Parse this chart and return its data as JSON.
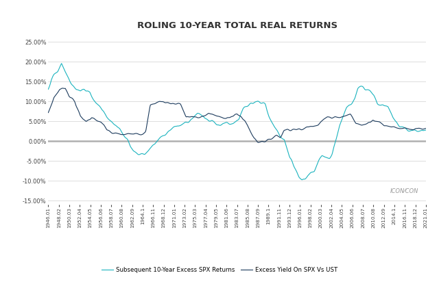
{
  "title": "ROLING 10-YEAR TOTAL REAL RETURNS",
  "ylim": [
    -0.16,
    0.27
  ],
  "yticks": [
    -0.15,
    -0.1,
    -0.05,
    0.0,
    0.05,
    0.1,
    0.15,
    0.2,
    0.25
  ],
  "line1_label": "Excess Yield On SPX Vs UST",
  "line2_label": "Subsequent 10-Year Excess SPX Returns",
  "line1_color": "#1b3a5c",
  "line2_color": "#1ab3be",
  "bg_color": "#f5f5f5",
  "plot_bg_color": "#ffffff",
  "grid_color": "#d0d0d0",
  "border_color": "#cccccc",
  "zero_line_color": "#b0b0b0",
  "x_labels": [
    "1946.01",
    "1948.02",
    "1950.03",
    "1952.04",
    "1954.05",
    "1956.06",
    "1958.07",
    "1960.08",
    "1962.09",
    "1964.1",
    "1966.11",
    "1968.12",
    "1971.01",
    "1973.02",
    "1975.03",
    "1977.04",
    "1979.05",
    "1981.06",
    "1983.07",
    "1985.08",
    "1987.09",
    "1989.1",
    "1991.11",
    "1993.12",
    "1996.01",
    "1998.02",
    "2000.03",
    "2002.04",
    "2004.05",
    "2006.06",
    "2008.07",
    "2010.08",
    "2012.09",
    "2014.1",
    "2016.11",
    "2018.12",
    "2021.01"
  ],
  "waypoints_yield": [
    [
      0.0,
      0.07
    ],
    [
      0.015,
      0.11
    ],
    [
      0.03,
      0.13
    ],
    [
      0.045,
      0.135
    ],
    [
      0.055,
      0.115
    ],
    [
      0.07,
      0.1
    ],
    [
      0.085,
      0.062
    ],
    [
      0.1,
      0.05
    ],
    [
      0.115,
      0.06
    ],
    [
      0.125,
      0.052
    ],
    [
      0.14,
      0.048
    ],
    [
      0.155,
      0.028
    ],
    [
      0.17,
      0.02
    ],
    [
      0.185,
      0.018
    ],
    [
      0.2,
      0.016
    ],
    [
      0.215,
      0.018
    ],
    [
      0.23,
      0.022
    ],
    [
      0.245,
      0.018
    ],
    [
      0.258,
      0.022
    ],
    [
      0.27,
      0.09
    ],
    [
      0.28,
      0.095
    ],
    [
      0.295,
      0.1
    ],
    [
      0.31,
      0.098
    ],
    [
      0.325,
      0.095
    ],
    [
      0.34,
      0.095
    ],
    [
      0.35,
      0.095
    ],
    [
      0.365,
      0.06
    ],
    [
      0.38,
      0.062
    ],
    [
      0.395,
      0.058
    ],
    [
      0.41,
      0.063
    ],
    [
      0.425,
      0.07
    ],
    [
      0.44,
      0.065
    ],
    [
      0.455,
      0.06
    ],
    [
      0.47,
      0.06
    ],
    [
      0.48,
      0.06
    ],
    [
      0.49,
      0.062
    ],
    [
      0.5,
      0.068
    ],
    [
      0.51,
      0.062
    ],
    [
      0.52,
      0.053
    ],
    [
      0.535,
      0.025
    ],
    [
      0.545,
      0.008
    ],
    [
      0.555,
      -0.002
    ],
    [
      0.565,
      0.0
    ],
    [
      0.575,
      0.0
    ],
    [
      0.585,
      0.002
    ],
    [
      0.595,
      0.01
    ],
    [
      0.605,
      0.015
    ],
    [
      0.615,
      0.01
    ],
    [
      0.625,
      0.028
    ],
    [
      0.64,
      0.03
    ],
    [
      0.655,
      0.03
    ],
    [
      0.67,
      0.028
    ],
    [
      0.685,
      0.035
    ],
    [
      0.7,
      0.04
    ],
    [
      0.715,
      0.042
    ],
    [
      0.73,
      0.055
    ],
    [
      0.74,
      0.06
    ],
    [
      0.75,
      0.06
    ],
    [
      0.76,
      0.062
    ],
    [
      0.775,
      0.06
    ],
    [
      0.79,
      0.065
    ],
    [
      0.8,
      0.068
    ],
    [
      0.815,
      0.045
    ],
    [
      0.83,
      0.04
    ],
    [
      0.845,
      0.045
    ],
    [
      0.86,
      0.055
    ],
    [
      0.875,
      0.048
    ],
    [
      0.89,
      0.04
    ],
    [
      0.905,
      0.038
    ],
    [
      0.92,
      0.035
    ],
    [
      0.935,
      0.032
    ],
    [
      0.95,
      0.03
    ],
    [
      0.965,
      0.028
    ],
    [
      0.98,
      0.03
    ],
    [
      1.0,
      0.03
    ]
  ],
  "waypoints_subsequent": [
    [
      0.0,
      0.135
    ],
    [
      0.008,
      0.155
    ],
    [
      0.015,
      0.165
    ],
    [
      0.025,
      0.175
    ],
    [
      0.035,
      0.195
    ],
    [
      0.045,
      0.175
    ],
    [
      0.055,
      0.155
    ],
    [
      0.065,
      0.14
    ],
    [
      0.075,
      0.13
    ],
    [
      0.085,
      0.125
    ],
    [
      0.095,
      0.13
    ],
    [
      0.11,
      0.125
    ],
    [
      0.12,
      0.105
    ],
    [
      0.13,
      0.095
    ],
    [
      0.14,
      0.085
    ],
    [
      0.15,
      0.07
    ],
    [
      0.155,
      0.062
    ],
    [
      0.165,
      0.052
    ],
    [
      0.175,
      0.04
    ],
    [
      0.185,
      0.032
    ],
    [
      0.195,
      0.022
    ],
    [
      0.21,
      0.005
    ],
    [
      0.225,
      -0.025
    ],
    [
      0.235,
      -0.03
    ],
    [
      0.245,
      -0.033
    ],
    [
      0.255,
      -0.033
    ],
    [
      0.265,
      -0.025
    ],
    [
      0.278,
      -0.01
    ],
    [
      0.29,
      0.003
    ],
    [
      0.305,
      0.015
    ],
    [
      0.32,
      0.025
    ],
    [
      0.335,
      0.038
    ],
    [
      0.35,
      0.04
    ],
    [
      0.36,
      0.045
    ],
    [
      0.372,
      0.05
    ],
    [
      0.384,
      0.062
    ],
    [
      0.395,
      0.07
    ],
    [
      0.405,
      0.065
    ],
    [
      0.415,
      0.055
    ],
    [
      0.43,
      0.05
    ],
    [
      0.445,
      0.045
    ],
    [
      0.455,
      0.042
    ],
    [
      0.467,
      0.045
    ],
    [
      0.478,
      0.045
    ],
    [
      0.49,
      0.045
    ],
    [
      0.505,
      0.055
    ],
    [
      0.515,
      0.08
    ],
    [
      0.525,
      0.088
    ],
    [
      0.535,
      0.092
    ],
    [
      0.545,
      0.098
    ],
    [
      0.555,
      0.1
    ],
    [
      0.565,
      0.095
    ],
    [
      0.575,
      0.09
    ],
    [
      0.585,
      0.06
    ],
    [
      0.595,
      0.04
    ],
    [
      0.605,
      0.025
    ],
    [
      0.615,
      0.01
    ],
    [
      0.625,
      0.005
    ],
    [
      0.632,
      -0.02
    ],
    [
      0.64,
      -0.045
    ],
    [
      0.648,
      -0.06
    ],
    [
      0.656,
      -0.075
    ],
    [
      0.664,
      -0.09
    ],
    [
      0.672,
      -0.1
    ],
    [
      0.68,
      -0.095
    ],
    [
      0.688,
      -0.085
    ],
    [
      0.695,
      -0.08
    ],
    [
      0.705,
      -0.075
    ],
    [
      0.715,
      -0.055
    ],
    [
      0.725,
      -0.04
    ],
    [
      0.735,
      -0.038
    ],
    [
      0.745,
      -0.04
    ],
    [
      0.752,
      -0.03
    ],
    [
      0.762,
      0.005
    ],
    [
      0.772,
      0.04
    ],
    [
      0.782,
      0.065
    ],
    [
      0.79,
      0.085
    ],
    [
      0.797,
      0.095
    ],
    [
      0.804,
      0.1
    ],
    [
      0.812,
      0.11
    ],
    [
      0.82,
      0.13
    ],
    [
      0.828,
      0.135
    ],
    [
      0.836,
      0.135
    ],
    [
      0.844,
      0.13
    ],
    [
      0.852,
      0.125
    ],
    [
      0.862,
      0.115
    ],
    [
      0.872,
      0.095
    ],
    [
      0.882,
      0.09
    ],
    [
      0.892,
      0.088
    ],
    [
      0.9,
      0.085
    ],
    [
      0.912,
      0.06
    ],
    [
      0.92,
      0.05
    ],
    [
      0.932,
      0.04
    ],
    [
      0.942,
      0.035
    ],
    [
      0.952,
      0.03
    ],
    [
      0.965,
      0.025
    ],
    [
      0.978,
      0.025
    ],
    [
      0.99,
      0.028
    ],
    [
      1.0,
      0.025
    ]
  ]
}
